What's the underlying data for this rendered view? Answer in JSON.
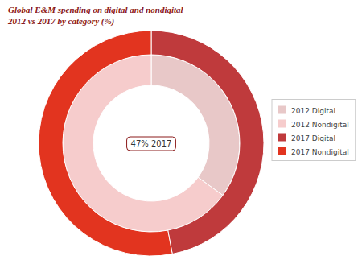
{
  "chart_data": {
    "type": "pie",
    "title": [
      "Global E&M spending on digital and nondigital",
      "2012 vs 2017 by category (%)"
    ],
    "annotations": [
      "47% 2017"
    ],
    "series": [
      {
        "labels": [
          "2012 Digital",
          "2012 Nondigital"
        ],
        "values": [
          35,
          65
        ],
        "colors": [
          "#e8c8c8",
          "#f6cccc"
        ]
      },
      {
        "labels": [
          "2017 Digital",
          "2017 Nondigital"
        ],
        "values": [
          47,
          53
        ],
        "colors": [
          "#bf3a3c",
          "#e2341f"
        ]
      }
    ],
    "legend": "right"
  }
}
